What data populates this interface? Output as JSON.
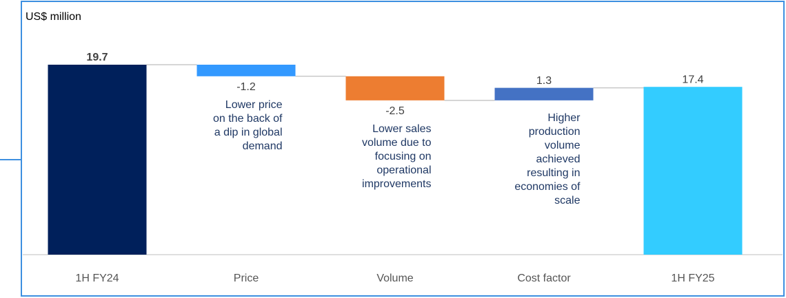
{
  "chart_data": {
    "type": "waterfall",
    "y_label": "US$ million",
    "categories": [
      "1H FY24",
      "Price",
      "Volume",
      "Cost factor",
      "1H FY25"
    ],
    "values": [
      19.7,
      -1.2,
      -2.5,
      1.3,
      17.4
    ],
    "measure": [
      "total",
      "relative",
      "relative",
      "relative",
      "total"
    ],
    "colors": [
      "#00205b",
      "#3399ff",
      "#ed7d31",
      "#4472c4",
      "#33ccff"
    ],
    "annotations": [
      null,
      [
        "Lower price",
        "on the back of",
        "a dip in global",
        "demand"
      ],
      [
        "Lower sales",
        "volume due to",
        "focusing on",
        "operational",
        "improvements"
      ],
      [
        "Higher",
        "production",
        "volume",
        "achieved",
        "resulting in",
        "economies of",
        "scale"
      ],
      null
    ]
  }
}
